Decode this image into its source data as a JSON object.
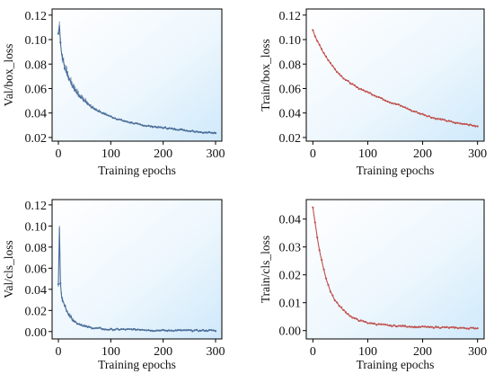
{
  "figure": {
    "panels": [
      {
        "id": "val-box",
        "ylabel": "Val/box_loss",
        "xlabel": "Training epochs",
        "yticks": [
          "0.02",
          "0.04",
          "0.06",
          "0.08",
          "0.10",
          "0.12"
        ],
        "xticks": [
          "0",
          "100",
          "200",
          "300"
        ]
      },
      {
        "id": "train-box",
        "ylabel": "Train/box_loss",
        "xlabel": "Training epochs",
        "yticks": [
          "0.02",
          "0.04",
          "0.06",
          "0.08",
          "0.10",
          "0.12"
        ],
        "xticks": [
          "0",
          "100",
          "200",
          "300"
        ]
      },
      {
        "id": "val-cls",
        "ylabel": "Val/cls_loss",
        "xlabel": "Training epochs",
        "yticks": [
          "0.00",
          "0.02",
          "0.04",
          "0.06",
          "0.08",
          "0.10",
          "0.12"
        ],
        "xticks": [
          "0",
          "100",
          "200",
          "300"
        ]
      },
      {
        "id": "train-cls",
        "ylabel": "Train/cls_loss",
        "xlabel": "Training epochs",
        "yticks": [
          "0.00",
          "0.01",
          "0.02",
          "0.03",
          "0.04"
        ],
        "xticks": [
          "0",
          "100",
          "200",
          "300"
        ]
      }
    ]
  },
  "chart_data": [
    {
      "type": "line",
      "xlabel": "Training epochs",
      "ylabel": "Val/box_loss",
      "xlim": [
        -12,
        312
      ],
      "ylim": [
        0.017,
        0.125
      ],
      "xticks": [
        0,
        100,
        200,
        300
      ],
      "yticks": [
        0.02,
        0.04,
        0.06,
        0.08,
        0.1,
        0.12
      ],
      "background": "light-blue gradient",
      "series": [
        {
          "color": "#4a6d99",
          "marker": "small dots with per-point vertical spikes",
          "x": [
            0,
            1,
            2,
            3,
            4,
            5,
            6,
            8,
            10,
            12,
            15,
            18,
            20,
            23,
            26,
            30,
            35,
            40,
            45,
            50,
            60,
            70,
            80,
            90,
            100,
            120,
            140,
            160,
            180,
            200,
            220,
            240,
            260,
            280,
            300
          ],
          "y": [
            0.105,
            0.118,
            0.112,
            0.103,
            0.098,
            0.094,
            0.089,
            0.084,
            0.082,
            0.077,
            0.074,
            0.071,
            0.068,
            0.066,
            0.063,
            0.06,
            0.057,
            0.054,
            0.052,
            0.05,
            0.046,
            0.043,
            0.041,
            0.039,
            0.037,
            0.034,
            0.032,
            0.03,
            0.029,
            0.028,
            0.027,
            0.026,
            0.025,
            0.024,
            0.024
          ]
        }
      ]
    },
    {
      "type": "line",
      "xlabel": "Training epochs",
      "ylabel": "Train/box_loss",
      "xlim": [
        -12,
        312
      ],
      "ylim": [
        0.017,
        0.125
      ],
      "xticks": [
        0,
        100,
        200,
        300
      ],
      "yticks": [
        0.02,
        0.04,
        0.06,
        0.08,
        0.1,
        0.12
      ],
      "background": "light-blue gradient",
      "series": [
        {
          "color": "#c0504d",
          "marker": "small dots",
          "x": [
            0,
            5,
            10,
            15,
            20,
            30,
            40,
            50,
            60,
            80,
            100,
            120,
            140,
            160,
            180,
            200,
            220,
            240,
            260,
            280,
            300
          ],
          "y": [
            0.108,
            0.102,
            0.097,
            0.093,
            0.089,
            0.082,
            0.076,
            0.071,
            0.067,
            0.061,
            0.057,
            0.053,
            0.049,
            0.046,
            0.042,
            0.039,
            0.036,
            0.034,
            0.032,
            0.031,
            0.029
          ]
        }
      ]
    },
    {
      "type": "line",
      "xlabel": "Training epochs",
      "ylabel": "Val/cls_loss",
      "xlim": [
        -12,
        312
      ],
      "ylim": [
        -0.007,
        0.125
      ],
      "xticks": [
        0,
        100,
        200,
        300
      ],
      "yticks": [
        0.0,
        0.02,
        0.04,
        0.06,
        0.08,
        0.1,
        0.12
      ],
      "background": "light-blue gradient",
      "series": [
        {
          "color": "#4a6d99",
          "marker": "small dots with per-point vertical spikes",
          "x": [
            0,
            1,
            2,
            3,
            4,
            5,
            6,
            8,
            10,
            12,
            15,
            18,
            20,
            23,
            26,
            30,
            35,
            40,
            45,
            50,
            60,
            70,
            80,
            90,
            100,
            120,
            140,
            160,
            180,
            200,
            220,
            240,
            260,
            280,
            300
          ],
          "y": [
            0.045,
            0.052,
            0.098,
            0.058,
            0.046,
            0.04,
            0.034,
            0.03,
            0.027,
            0.024,
            0.021,
            0.018,
            0.016,
            0.014,
            0.012,
            0.01,
            0.008,
            0.007,
            0.006,
            0.005,
            0.004,
            0.003,
            0.003,
            0.002,
            0.002,
            0.002,
            0.002,
            0.002,
            0.001,
            0.001,
            0.001,
            0.001,
            0.001,
            0.001,
            0.001
          ]
        }
      ]
    },
    {
      "type": "line",
      "xlabel": "Training epochs",
      "ylabel": "Train/cls_loss",
      "xlim": [
        -12,
        312
      ],
      "ylim": [
        -0.003,
        0.047
      ],
      "xticks": [
        0,
        100,
        200,
        300
      ],
      "yticks": [
        0.0,
        0.01,
        0.02,
        0.03,
        0.04
      ],
      "background": "light-blue gradient",
      "series": [
        {
          "color": "#c0504d",
          "marker": "small dots",
          "x": [
            0,
            3,
            6,
            10,
            15,
            20,
            25,
            30,
            35,
            40,
            50,
            60,
            70,
            80,
            90,
            100,
            120,
            140,
            160,
            180,
            200,
            220,
            240,
            260,
            280,
            300
          ],
          "y": [
            0.044,
            0.04,
            0.036,
            0.031,
            0.026,
            0.022,
            0.018,
            0.015,
            0.013,
            0.011,
            0.0085,
            0.0065,
            0.005,
            0.004,
            0.0033,
            0.0028,
            0.0022,
            0.0018,
            0.0016,
            0.0014,
            0.0013,
            0.0012,
            0.0011,
            0.001,
            0.0009,
            0.0008
          ]
        }
      ]
    }
  ]
}
